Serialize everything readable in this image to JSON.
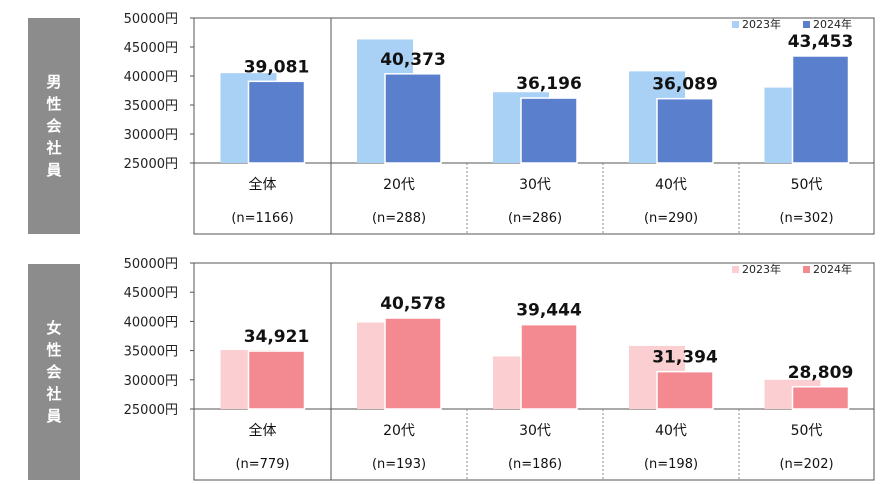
{
  "panels": [
    {
      "side_label": "男性会社員",
      "legend": [
        "2023年",
        "2024年"
      ],
      "colors": {
        "y2023": "#a9d1f5",
        "y2024": "#5a7fcd"
      },
      "chart_data": {
        "type": "bar",
        "categories": [
          "全体",
          "20代",
          "30代",
          "40代",
          "50代"
        ],
        "sample_sizes": [
          "(n=1166)",
          "(n=288)",
          "(n=286)",
          "(n=290)",
          "(n=302)"
        ],
        "series": [
          {
            "name": "2023年",
            "values": [
              40500,
              46300,
              37200,
              40800,
              38000
            ]
          },
          {
            "name": "2024年",
            "values": [
              39081,
              40373,
              36196,
              36089,
              43453
            ]
          }
        ],
        "data_labels": [
          "39,081",
          "40,373",
          "36,196",
          "36,089",
          "43,453"
        ],
        "yticks": [
          "50000円",
          "45000円",
          "40000円",
          "35000円",
          "30000円",
          "25000円"
        ],
        "ylim": [
          25000,
          50000
        ],
        "legend_position": "top-right"
      }
    },
    {
      "side_label": "女性会社員",
      "legend": [
        "2023年",
        "2024年"
      ],
      "colors": {
        "y2023": "#fbcfd1",
        "y2024": "#f38a92"
      },
      "chart_data": {
        "type": "bar",
        "categories": [
          "全体",
          "20代",
          "30代",
          "40代",
          "50代"
        ],
        "sample_sizes": [
          "(n=779)",
          "(n=193)",
          "(n=186)",
          "(n=198)",
          "(n=202)"
        ],
        "series": [
          {
            "name": "2023年",
            "values": [
              35100,
              39800,
              34000,
              35800,
              30000
            ]
          },
          {
            "name": "2024年",
            "values": [
              34921,
              40578,
              39444,
              31394,
              28809
            ]
          }
        ],
        "data_labels": [
          "34,921",
          "40,578",
          "39,444",
          "31,394",
          "28,809"
        ],
        "yticks": [
          "50000円",
          "45000円",
          "40000円",
          "35000円",
          "30000円",
          "25000円"
        ],
        "ylim": [
          25000,
          50000
        ],
        "legend_position": "top-right"
      }
    }
  ]
}
